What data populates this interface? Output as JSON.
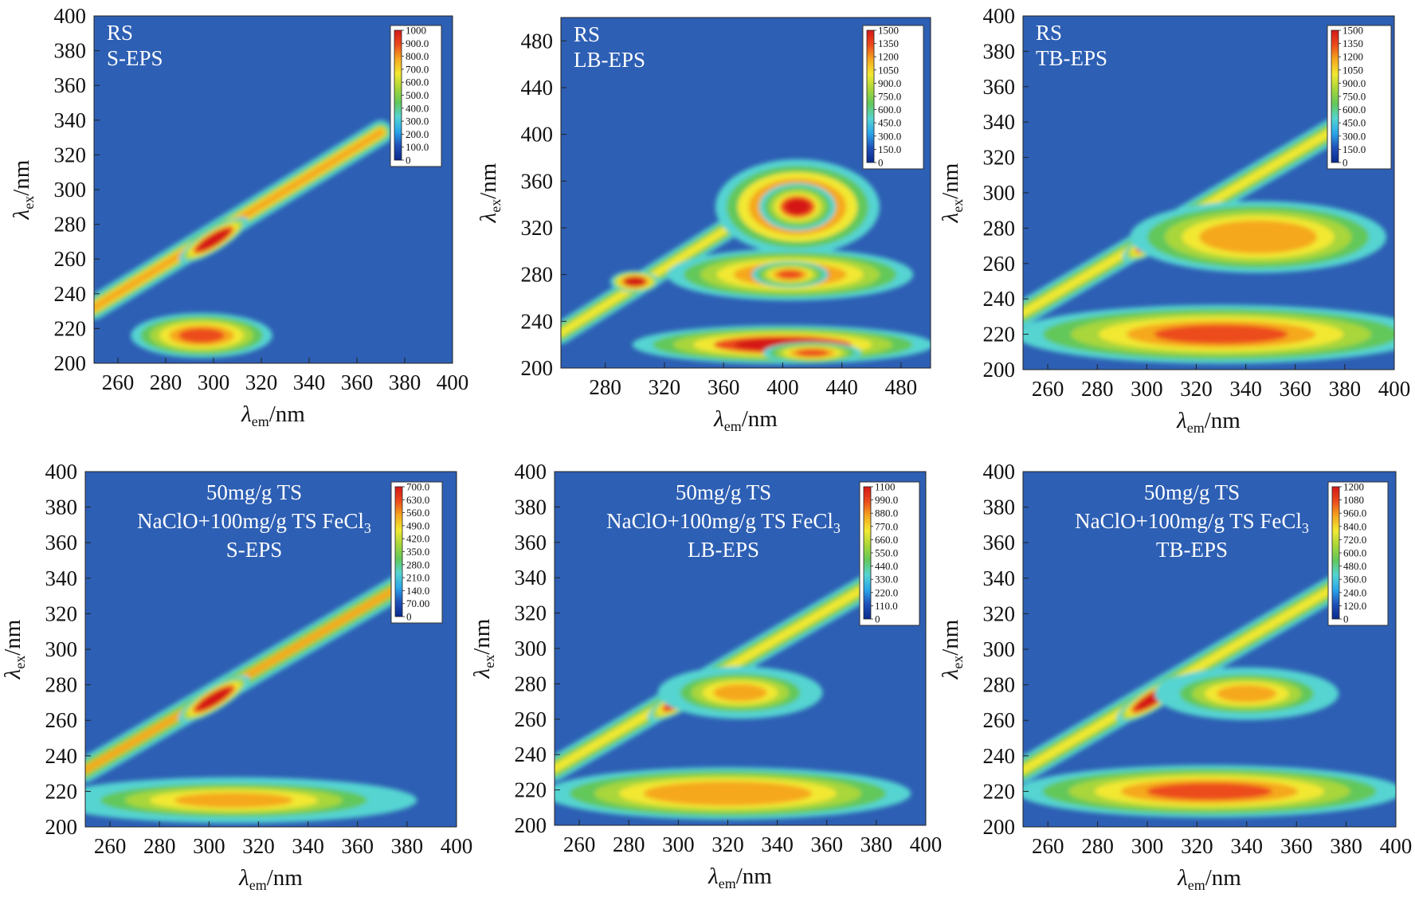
{
  "colors": {
    "background": "#2d5fb4",
    "scale": [
      "#0a2a8c",
      "#1f4fb8",
      "#2aa6ea",
      "#55d4d2",
      "#62c85a",
      "#a8d63a",
      "#f2e832",
      "#f5a81f",
      "#ec4b1c",
      "#d41818"
    ]
  },
  "chart_data": [
    {
      "type": "heatmap",
      "id": "rs-s-eps",
      "labels": [
        "RS",
        "S-EPS"
      ],
      "xlabel_sym": "λ",
      "xlabel_sub": "em",
      "xlabel_unit": "/nm",
      "ylabel_sym": "λ",
      "ylabel_sub": "ex",
      "ylabel_unit": "/nm",
      "xlim": [
        250,
        400
      ],
      "ylim": [
        200,
        400
      ],
      "xticks": [
        260,
        280,
        300,
        320,
        340,
        360,
        380,
        400
      ],
      "yticks": [
        200,
        220,
        240,
        260,
        280,
        300,
        320,
        340,
        360,
        380,
        400
      ],
      "colorbar": {
        "min": 0,
        "max": 1000,
        "labels": [
          "1000",
          "900.0",
          "800.0",
          "700.0",
          "600.0",
          "500.0",
          "400.0",
          "300.0",
          "200.0",
          "100.0",
          "0"
        ]
      },
      "streak": [
        {
          "em": [
            250,
            370
          ],
          "ex": [
            232,
            333
          ],
          "width": 4.5,
          "level": 0.52
        }
      ],
      "peaks": [
        {
          "em": 300,
          "ex": 271,
          "sem": 9,
          "sex": 3.5,
          "level": 0.78,
          "tilt": true
        },
        {
          "em": 295,
          "ex": 216,
          "sem": 16,
          "sex": 7,
          "level": 0.42
        }
      ]
    },
    {
      "type": "heatmap",
      "id": "rs-lb-eps",
      "labels": [
        "RS",
        "LB-EPS"
      ],
      "xlabel_sym": "λ",
      "xlabel_sub": "em",
      "xlabel_unit": "/nm",
      "ylabel_sym": "λ",
      "ylabel_sub": "ex",
      "ylabel_unit": "/nm",
      "xlim": [
        250,
        500
      ],
      "ylim": [
        200,
        500
      ],
      "xticks": [
        280,
        320,
        360,
        400,
        440,
        480
      ],
      "yticks": [
        200,
        240,
        280,
        320,
        360,
        400,
        440,
        480
      ],
      "colorbar": {
        "min": 0,
        "max": 1500,
        "labels": [
          "1500",
          "1350",
          "1200",
          "1050",
          "900.0",
          "750.0",
          "600.0",
          "450.0",
          "300.0",
          "150.0",
          "0"
        ]
      },
      "streak": [
        {
          "em": [
            250,
            395
          ],
          "ex": [
            230,
            345
          ],
          "width": 6,
          "level": 0.42
        }
      ],
      "peaks": [
        {
          "em": 300,
          "ex": 274,
          "sem": 9,
          "sex": 5,
          "level": 0.7
        },
        {
          "em": 410,
          "ex": 338,
          "sem": 30,
          "sex": 22,
          "level": 0.6
        },
        {
          "em": 410,
          "ex": 338,
          "sem": 14,
          "sex": 11,
          "level": 0.55
        },
        {
          "em": 405,
          "ex": 280,
          "sem": 45,
          "sex": 12,
          "level": 0.48
        },
        {
          "em": 405,
          "ex": 280,
          "sem": 14,
          "sex": 6,
          "level": 0.5
        },
        {
          "em": 400,
          "ex": 220,
          "sem": 55,
          "sex": 9,
          "level": 0.55
        },
        {
          "em": 420,
          "ex": 213,
          "sem": 18,
          "sex": 5,
          "level": 0.45
        }
      ]
    },
    {
      "type": "heatmap",
      "id": "rs-tb-eps",
      "labels": [
        "RS",
        "TB-EPS"
      ],
      "xlabel_sym": "λ",
      "xlabel_sub": "em",
      "xlabel_unit": "/nm",
      "ylabel_sym": "λ",
      "ylabel_sub": "ex",
      "ylabel_unit": "/nm",
      "xlim": [
        250,
        400
      ],
      "ylim": [
        200,
        400
      ],
      "xticks": [
        260,
        280,
        300,
        320,
        340,
        360,
        380,
        400
      ],
      "yticks": [
        200,
        220,
        240,
        260,
        280,
        300,
        320,
        340,
        360,
        380,
        400
      ],
      "colorbar": {
        "min": 0,
        "max": 1500,
        "labels": [
          "1500",
          "1350",
          "1200",
          "1050",
          "900.0",
          "750.0",
          "600.0",
          "450.0",
          "300.0",
          "150.0",
          "0"
        ]
      },
      "streak": [
        {
          "em": [
            250,
            375
          ],
          "ex": [
            232,
            335
          ],
          "width": 4.5,
          "level": 0.45
        }
      ],
      "peaks": [
        {
          "em": 303,
          "ex": 273,
          "sem": 8,
          "sex": 3.5,
          "level": 0.75,
          "tilt": true
        },
        {
          "em": 345,
          "ex": 275,
          "sem": 28,
          "sex": 11,
          "level": 0.4
        },
        {
          "em": 330,
          "ex": 220,
          "sem": 45,
          "sex": 9,
          "level": 0.48
        }
      ]
    },
    {
      "type": "heatmap",
      "id": "treated-s-eps",
      "labels": [
        "50mg/g TS",
        "NaClO+100mg/g TS FeCl",
        "S-EPS"
      ],
      "label_sub": "3",
      "xlabel_sym": "λ",
      "xlabel_sub": "em",
      "xlabel_unit": "/nm",
      "ylabel_sym": "λ",
      "ylabel_sub": "ex",
      "ylabel_unit": "/nm",
      "xlim": [
        250,
        400
      ],
      "ylim": [
        200,
        400
      ],
      "xticks": [
        260,
        280,
        300,
        320,
        340,
        360,
        380,
        400
      ],
      "yticks": [
        200,
        220,
        240,
        260,
        280,
        300,
        320,
        340,
        360,
        380,
        400
      ],
      "colorbar": {
        "min": 0,
        "max": 700,
        "labels": [
          "700.0",
          "630.0",
          "560.0",
          "490.0",
          "420.0",
          "350.0",
          "280.0",
          "210.0",
          "140.0",
          "70.00",
          "0"
        ]
      },
      "streak": [
        {
          "em": [
            250,
            378
          ],
          "ex": [
            232,
            336
          ],
          "width": 4.5,
          "level": 0.5
        }
      ],
      "peaks": [
        {
          "em": 302,
          "ex": 272,
          "sem": 9,
          "sex": 3.5,
          "level": 0.75,
          "tilt": true
        },
        {
          "em": 310,
          "ex": 215,
          "sem": 40,
          "sex": 7,
          "level": 0.3
        }
      ]
    },
    {
      "type": "heatmap",
      "id": "treated-lb-eps",
      "labels": [
        "50mg/g TS",
        "NaClO+100mg/g TS FeCl",
        "LB-EPS"
      ],
      "label_sub": "3",
      "xlabel_sym": "λ",
      "xlabel_sub": "em",
      "xlabel_unit": "/nm",
      "ylabel_sym": "λ",
      "ylabel_sub": "ex",
      "ylabel_unit": "/nm",
      "xlim": [
        250,
        400
      ],
      "ylim": [
        200,
        400
      ],
      "xticks": [
        260,
        280,
        300,
        320,
        340,
        360,
        380,
        400
      ],
      "yticks": [
        200,
        220,
        240,
        260,
        280,
        300,
        320,
        340,
        360,
        380,
        400
      ],
      "colorbar": {
        "min": 0,
        "max": 1100,
        "labels": [
          "1100",
          "990.0",
          "880.0",
          "770.0",
          "660.0",
          "550.0",
          "440.0",
          "330.0",
          "220.0",
          "110.0",
          "0"
        ]
      },
      "streak": [
        {
          "em": [
            250,
            380
          ],
          "ex": [
            232,
            338
          ],
          "width": 4.5,
          "level": 0.48
        }
      ],
      "peaks": [
        {
          "em": 302,
          "ex": 272,
          "sem": 9,
          "sex": 3.5,
          "level": 0.75,
          "tilt": true
        },
        {
          "em": 325,
          "ex": 275,
          "sem": 18,
          "sex": 8,
          "level": 0.3
        },
        {
          "em": 320,
          "ex": 218,
          "sem": 40,
          "sex": 8,
          "level": 0.4
        }
      ]
    },
    {
      "type": "heatmap",
      "id": "treated-tb-eps",
      "labels": [
        "50mg/g TS",
        "NaClO+100mg/g TS FeCl",
        "TB-EPS"
      ],
      "label_sub": "3",
      "xlabel_sym": "λ",
      "xlabel_sub": "em",
      "xlabel_unit": "/nm",
      "ylabel_sym": "λ",
      "ylabel_sub": "ex",
      "ylabel_unit": "/nm",
      "xlim": [
        250,
        400
      ],
      "ylim": [
        200,
        400
      ],
      "xticks": [
        260,
        280,
        300,
        320,
        340,
        360,
        380,
        400
      ],
      "yticks": [
        200,
        220,
        240,
        260,
        280,
        300,
        320,
        340,
        360,
        380,
        400
      ],
      "colorbar": {
        "min": 0,
        "max": 1200,
        "labels": [
          "1200",
          "1080",
          "960.0",
          "840.0",
          "720.0",
          "600.0",
          "480.0",
          "360.0",
          "240.0",
          "120.0",
          "0"
        ]
      },
      "streak": [
        {
          "em": [
            250,
            378
          ],
          "ex": [
            232,
            337
          ],
          "width": 4.5,
          "level": 0.48
        }
      ],
      "peaks": [
        {
          "em": 302,
          "ex": 272,
          "sem": 9,
          "sex": 3.5,
          "level": 0.75,
          "tilt": true
        },
        {
          "em": 340,
          "ex": 275,
          "sem": 20,
          "sex": 8,
          "level": 0.32
        },
        {
          "em": 325,
          "ex": 220,
          "sem": 42,
          "sex": 8,
          "level": 0.45
        }
      ]
    }
  ]
}
